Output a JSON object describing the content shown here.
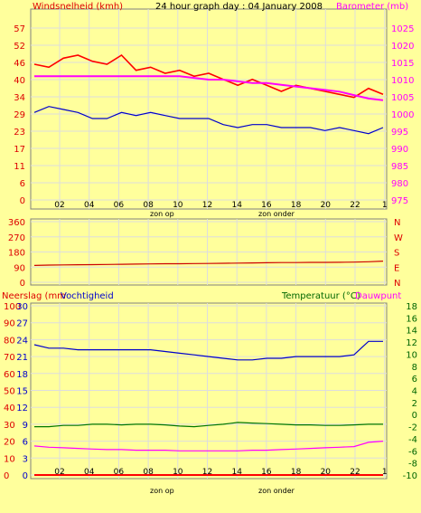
{
  "colors": {
    "background": "#ffff9c",
    "grid": "#dddddd",
    "frame": "#808080",
    "wind": "#ff0000",
    "wind_avg": "#0000cc",
    "pressure": "#ff00ff",
    "direction": "#cc0000",
    "humidity": "#0000cc",
    "temperature": "#007700",
    "dewpoint": "#ff00ff",
    "rain": "#ff0000",
    "title_red": "#dd0000",
    "title_pink": "#ff00ff",
    "title_green": "#006600",
    "title_blue": "#0000cc",
    "ticks": "#000000"
  },
  "chart_data": [
    {
      "type": "line",
      "title": "24 hour graph day : 04 January 2008",
      "ylabel": "Windsnelheid (kmh)",
      "ylabel_right": "Barometer (mb)",
      "x_ticks": [
        "02",
        "04",
        "06",
        "08",
        "10",
        "12",
        "14",
        "16",
        "18",
        "20",
        "22",
        "1"
      ],
      "x_annotations": [
        "zon op",
        "zon onder"
      ],
      "yticks_left": [
        57,
        52,
        46,
        40,
        34,
        29,
        23,
        17,
        11,
        6,
        0
      ],
      "yticks_right": [
        1025,
        1020,
        1015,
        1010,
        1005,
        1000,
        995,
        990,
        985,
        980,
        975
      ],
      "ylim": [
        0,
        57
      ],
      "ylim_right": [
        975,
        1025
      ],
      "x": [
        0,
        1,
        2,
        3,
        4,
        5,
        6,
        7,
        8,
        9,
        10,
        11,
        12,
        13,
        14,
        15,
        16,
        17,
        18,
        19,
        20,
        21,
        22,
        23,
        24
      ],
      "series": [
        {
          "name": "Windsnelheid (kmh)",
          "axis": "left",
          "values": [
            45,
            44,
            47,
            48,
            46,
            45,
            48,
            43,
            44,
            42,
            43,
            41,
            42,
            40,
            38,
            40,
            38,
            36,
            38,
            37,
            36,
            35,
            34,
            37,
            35
          ]
        },
        {
          "name": "",
          "axis": "left",
          "values": [
            29,
            31,
            30,
            29,
            27,
            27,
            29,
            28,
            29,
            28,
            27,
            27,
            27,
            25,
            24,
            25,
            25,
            24,
            24,
            24,
            23,
            24,
            23,
            22,
            24
          ]
        },
        {
          "name": "Barometer (mb)",
          "axis": "right",
          "values": [
            1011,
            1011,
            1011,
            1011,
            1011,
            1011,
            1011,
            1011,
            1011,
            1011,
            1011,
            1010.5,
            1010,
            1010,
            1009.5,
            1009,
            1009,
            1008.5,
            1008,
            1007.5,
            1007,
            1006.5,
            1005.5,
            1004.5,
            1004
          ]
        }
      ]
    },
    {
      "type": "line",
      "ylabel_right_letters": [
        "N",
        "W",
        "S",
        "E",
        "N"
      ],
      "yticks_left": [
        360,
        270,
        180,
        90,
        0
      ],
      "ylim": [
        0,
        360
      ],
      "x": [
        0,
        1,
        2,
        3,
        4,
        5,
        6,
        7,
        8,
        9,
        10,
        11,
        12,
        13,
        14,
        15,
        16,
        17,
        18,
        19,
        20,
        21,
        22,
        23,
        24
      ],
      "series": [
        {
          "name": "",
          "values": [
            100,
            102,
            103,
            104,
            105,
            106,
            107,
            108,
            109,
            110,
            110,
            111,
            112,
            113,
            114,
            115,
            116,
            117,
            117,
            118,
            118,
            119,
            120,
            122,
            126
          ]
        }
      ]
    },
    {
      "type": "line",
      "title_left_a": "Neerslag (mm",
      "title_left_b": "Vochtigheid",
      "title_right_a": "Temperatuur (°C)",
      "title_right_b": "Dauwpunt",
      "x_ticks": [
        "02",
        "04",
        "06",
        "08",
        "10",
        "12",
        "14",
        "16",
        "18",
        "20",
        "22",
        "1"
      ],
      "x_annotations": [
        "zon op",
        "zon onder"
      ],
      "yticks_left_a": [
        100,
        90,
        80,
        70,
        60,
        50,
        40,
        30,
        20,
        10,
        0
      ],
      "yticks_left_b": [
        30,
        27,
        24,
        21,
        18,
        15,
        12,
        9,
        6,
        3,
        0
      ],
      "yticks_right": [
        18,
        16,
        14,
        12,
        10,
        8,
        6,
        4,
        2,
        0,
        -2,
        -4,
        -6,
        -8,
        -10
      ],
      "ylim": [
        0,
        100
      ],
      "ylim_right": [
        -10,
        18
      ],
      "x": [
        0,
        1,
        2,
        3,
        4,
        5,
        6,
        7,
        8,
        9,
        10,
        11,
        12,
        13,
        14,
        15,
        16,
        17,
        18,
        19,
        20,
        21,
        22,
        23,
        24
      ],
      "series": [
        {
          "name": "Vochtigheid",
          "axis": "left",
          "values": [
            77,
            75,
            75,
            74,
            74,
            74,
            74,
            74,
            74,
            73,
            72,
            71,
            70,
            69,
            68,
            68,
            69,
            69,
            70,
            70,
            70,
            70,
            71,
            79,
            79
          ]
        },
        {
          "name": "Temperatuur (°C)",
          "axis": "right",
          "values": [
            -2,
            -2,
            -1.8,
            -1.8,
            -1.6,
            -1.6,
            -1.7,
            -1.6,
            -1.6,
            -1.7,
            -1.9,
            -2,
            -1.8,
            -1.6,
            -1.3,
            -1.4,
            -1.5,
            -1.6,
            -1.7,
            -1.7,
            -1.8,
            -1.8,
            -1.7,
            -1.6,
            -1.6
          ]
        },
        {
          "name": "Dauwpunt",
          "axis": "right",
          "values": [
            -5.2,
            -5.4,
            -5.5,
            -5.6,
            -5.7,
            -5.8,
            -5.8,
            -5.9,
            -5.9,
            -5.9,
            -6,
            -6,
            -6,
            -6,
            -6,
            -5.9,
            -5.9,
            -5.8,
            -5.7,
            -5.6,
            -5.5,
            -5.4,
            -5.3,
            -4.6,
            -4.4
          ]
        },
        {
          "name": "Neerslag (mm",
          "axis": "left_b",
          "values": [
            0,
            0,
            0,
            0,
            0,
            0,
            0,
            0,
            0,
            0,
            0,
            0,
            0,
            0,
            0,
            0,
            0,
            0,
            0,
            0,
            0,
            0,
            0,
            0,
            0
          ]
        }
      ]
    }
  ]
}
